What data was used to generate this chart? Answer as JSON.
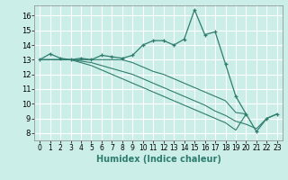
{
  "title": "",
  "xlabel": "Humidex (Indice chaleur)",
  "bg_color": "#cceee8",
  "grid_color": "#ffffff",
  "line_color": "#2e7d6e",
  "xlim": [
    -0.5,
    23.5
  ],
  "ylim": [
    7.5,
    16.7
  ],
  "xticks": [
    0,
    1,
    2,
    3,
    4,
    5,
    6,
    7,
    8,
    9,
    10,
    11,
    12,
    13,
    14,
    15,
    16,
    17,
    18,
    19,
    20,
    21,
    22,
    23
  ],
  "yticks": [
    8,
    9,
    10,
    11,
    12,
    13,
    14,
    15,
    16
  ],
  "line1_x": [
    0,
    1,
    2,
    3,
    4,
    5,
    6,
    7,
    8,
    9,
    10,
    11,
    12,
    13,
    14,
    15,
    16,
    17,
    18,
    19,
    20,
    21,
    22,
    23
  ],
  "line1_y": [
    13.0,
    13.4,
    13.1,
    13.0,
    13.1,
    13.0,
    13.3,
    13.2,
    13.1,
    13.3,
    14.0,
    14.3,
    14.3,
    14.0,
    14.4,
    16.4,
    14.7,
    14.9,
    12.7,
    10.5,
    9.3,
    8.1,
    9.0,
    9.3
  ],
  "line2_x": [
    0,
    1,
    2,
    3,
    4,
    5,
    6,
    7,
    8,
    9,
    10,
    11,
    12,
    13,
    14,
    15,
    16,
    17,
    18,
    19,
    20
  ],
  "line2_y": [
    13.0,
    13.0,
    13.0,
    13.0,
    13.0,
    13.0,
    13.0,
    13.0,
    13.0,
    12.8,
    12.5,
    12.2,
    12.0,
    11.7,
    11.4,
    11.1,
    10.8,
    10.5,
    10.2,
    9.4,
    9.3
  ],
  "line3_x": [
    0,
    1,
    2,
    3,
    4,
    5,
    6,
    7,
    8,
    9,
    10,
    11,
    12,
    13,
    14,
    15,
    16,
    17,
    18,
    19,
    20,
    21,
    22,
    23
  ],
  "line3_y": [
    13.0,
    13.0,
    13.0,
    13.0,
    12.9,
    12.8,
    12.6,
    12.4,
    12.2,
    12.0,
    11.7,
    11.4,
    11.1,
    10.8,
    10.5,
    10.2,
    9.9,
    9.5,
    9.2,
    8.8,
    8.6,
    8.3,
    9.0,
    9.3
  ],
  "line4_x": [
    0,
    1,
    2,
    3,
    4,
    5,
    6,
    7,
    8,
    9,
    10,
    11,
    12,
    13,
    14,
    15,
    16,
    17,
    18,
    19,
    20
  ],
  "line4_y": [
    13.0,
    13.0,
    13.0,
    13.0,
    12.8,
    12.6,
    12.3,
    12.0,
    11.7,
    11.4,
    11.1,
    10.8,
    10.5,
    10.2,
    9.9,
    9.6,
    9.3,
    9.0,
    8.7,
    8.2,
    9.3
  ]
}
